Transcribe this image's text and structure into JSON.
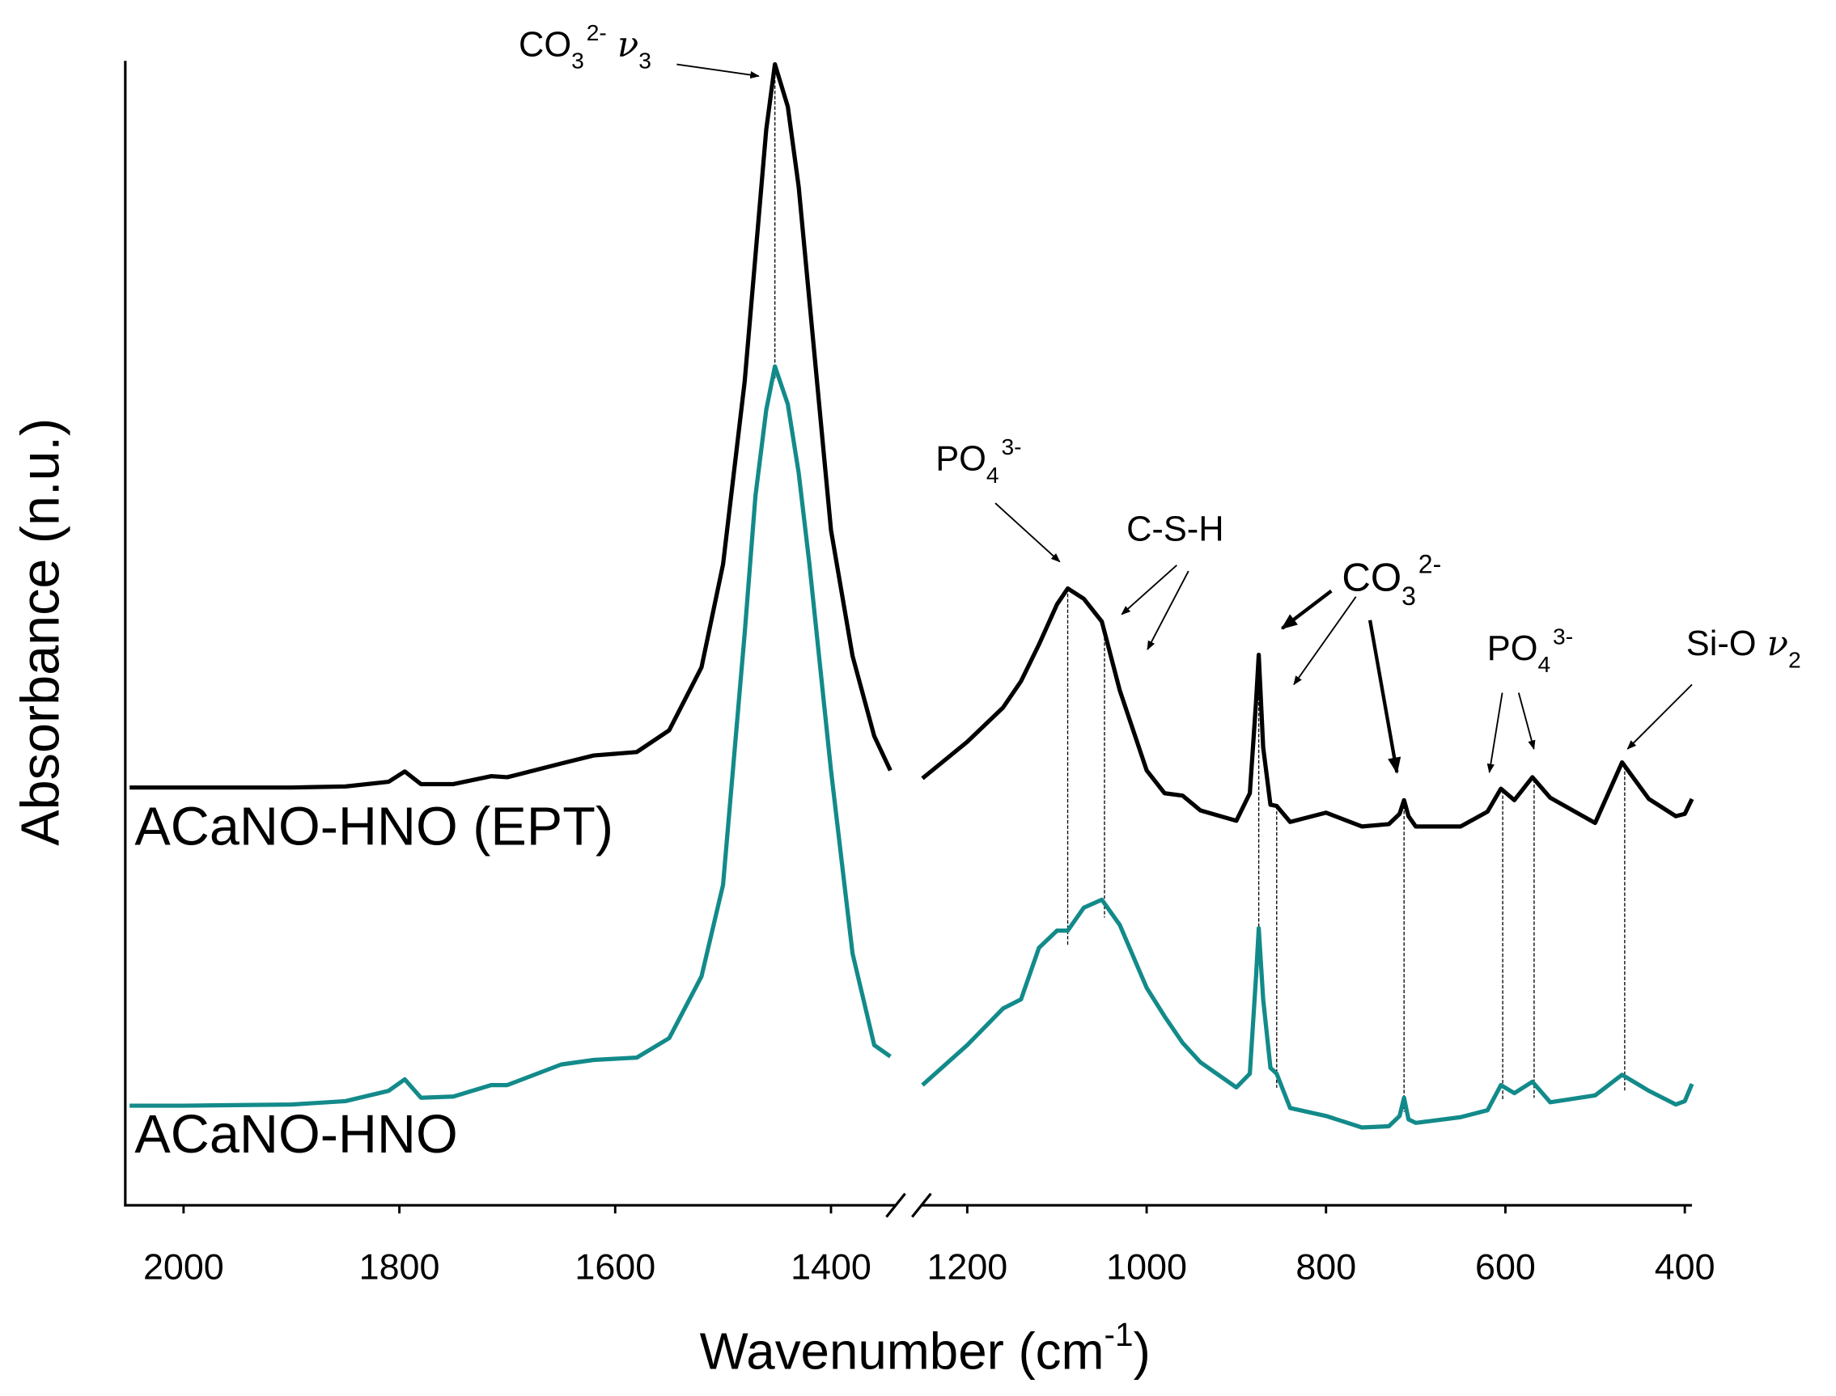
{
  "chart_data": {
    "type": "line",
    "y_label": "Absorbance (n.u.)",
    "x_label": {
      "text": "Wavenumber (cm",
      "sup": "-1",
      "suffix": ")"
    },
    "xlim": [
      2054,
      392
    ],
    "x_break": [
      1340,
      1251
    ],
    "xticks": [
      2000,
      1800,
      1600,
      1400,
      1200,
      1000,
      800,
      600,
      400
    ],
    "ylim": [
      0,
      100
    ],
    "x": [
      2050,
      2000,
      1900,
      1850,
      1810,
      1795,
      1780,
      1750,
      1715,
      1700,
      1650,
      1620,
      1580,
      1550,
      1520,
      1500,
      1480,
      1470,
      1460,
      1452,
      1440,
      1430,
      1420,
      1400,
      1380,
      1360,
      1345,
      1300,
      1250,
      1200,
      1160,
      1140,
      1120,
      1100,
      1088,
      1070,
      1050,
      1030,
      1000,
      980,
      960,
      940,
      900,
      885,
      878,
      875,
      870,
      862,
      855,
      840,
      800,
      760,
      730,
      718,
      713,
      708,
      700,
      650,
      620,
      605,
      590,
      570,
      550,
      500,
      470,
      440,
      410,
      400,
      392
    ],
    "series": [
      {
        "name": "ACaNO-HNO (EPT)",
        "color": "#000000",
        "values": [
          36.5,
          36.5,
          36.5,
          36.6,
          37.0,
          37.9,
          36.8,
          36.8,
          37.5,
          37.4,
          38.6,
          39.3,
          39.6,
          41.5,
          47,
          56,
          72,
          83,
          94,
          99.7,
          96,
          89,
          79,
          59,
          48,
          41,
          38,
          null,
          37.3,
          40.5,
          43.5,
          45.8,
          49,
          52.5,
          53.9,
          53,
          51,
          45,
          38,
          36,
          35.8,
          34.5,
          33.6,
          36,
          44,
          48.1,
          40,
          35,
          34.9,
          33.5,
          34.3,
          33.1,
          33.3,
          34.2,
          35.4,
          34,
          33.1,
          33.1,
          34.4,
          36.4,
          35.4,
          37.4,
          35.6,
          33.4,
          38.7,
          35.5,
          34,
          34.2,
          35.5
        ]
      },
      {
        "name": "ACaNO-HNO",
        "color": "#138a8a",
        "values": [
          8.7,
          8.7,
          8.8,
          9.1,
          10,
          11,
          9.4,
          9.5,
          10.5,
          10.5,
          12.3,
          12.7,
          12.9,
          14.6,
          20,
          28,
          50,
          62,
          69.5,
          73.3,
          70,
          64,
          56,
          38,
          22,
          14,
          13,
          null,
          10.5,
          14,
          17.2,
          18,
          22.5,
          24,
          24,
          26,
          26.7,
          24.5,
          19,
          16.5,
          14.2,
          12.5,
          10.3,
          11.5,
          20,
          24.2,
          18,
          12,
          11.5,
          8.5,
          7.8,
          6.8,
          6.9,
          7.8,
          9.4,
          7.5,
          7.2,
          7.7,
          8.3,
          10.5,
          9.8,
          10.8,
          9.0,
          9.6,
          11.4,
          10,
          8.8,
          9.1,
          10.6
        ]
      }
    ],
    "reference_lines": [
      1452,
      1088,
      1047,
      875,
      855,
      713,
      603,
      568,
      467
    ],
    "annotations": [
      {
        "text": "CO",
        "sub": "3",
        "sup": "2-",
        "symbol": "ν",
        "symbol_sub": "3"
      },
      {
        "text": "PO",
        "sub": "4",
        "sup": "3-"
      },
      {
        "text": "C-S-H"
      },
      {
        "text": "CO",
        "sub": "3",
        "sup": "2-"
      },
      {
        "text": "PO",
        "sub": "4",
        "sup": "3-"
      },
      {
        "text": "Si-O",
        "symbol": "ν",
        "symbol_sub": "2"
      }
    ]
  }
}
